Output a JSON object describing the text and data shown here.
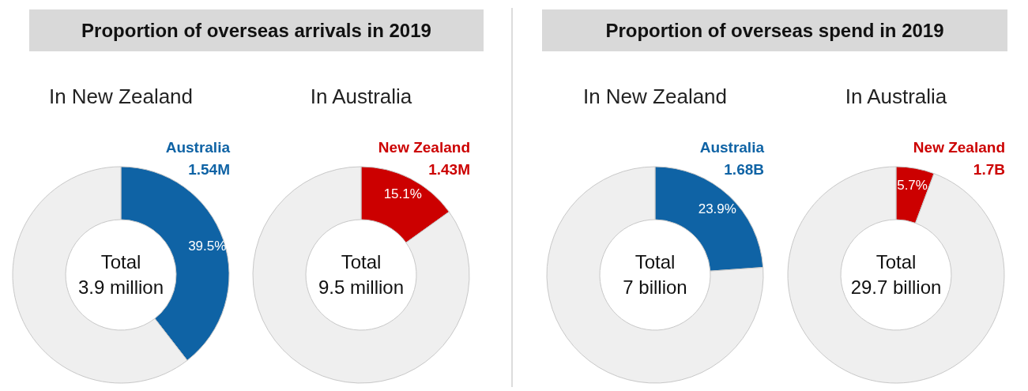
{
  "chart_data": [
    {
      "type": "donut",
      "title": "Proportion of overseas arrivals in 2019",
      "subtitle": "In New Zealand",
      "categories": [
        "Australia",
        null
      ],
      "values": [
        39.5,
        60.5
      ],
      "colors": [
        "#0f63a5",
        "#efefef"
      ],
      "value_labels": [
        "39.5%",
        null
      ],
      "annotations": [
        "1.54M",
        "Total",
        "3.9 million"
      ]
    },
    {
      "type": "donut",
      "subtitle": "In Australia",
      "categories": [
        "New Zealand",
        null
      ],
      "values": [
        15.1,
        84.9
      ],
      "colors": [
        "#cc0000",
        "#efefef"
      ],
      "value_labels": [
        "15.1%",
        null
      ],
      "annotations": [
        "1.43M",
        "Total",
        "9.5 million"
      ]
    },
    {
      "type": "donut",
      "title": "Proportion of overseas spend in 2019",
      "subtitle": "In New Zealand",
      "categories": [
        "Australia",
        null
      ],
      "values": [
        23.9,
        76.1
      ],
      "colors": [
        "#0f63a5",
        "#efefef"
      ],
      "value_labels": [
        "23.9%",
        null
      ],
      "annotations": [
        "1.68B",
        "Total",
        "7 billion"
      ]
    },
    {
      "type": "donut",
      "subtitle": "In Australia",
      "categories": [
        "New Zealand",
        null
      ],
      "values": [
        5.7,
        94.3
      ],
      "colors": [
        "#cc0000",
        "#efefef"
      ],
      "value_labels": [
        "5.7%",
        null
      ],
      "annotations": [
        "1.7B",
        "Total",
        "29.7 billion"
      ]
    }
  ]
}
